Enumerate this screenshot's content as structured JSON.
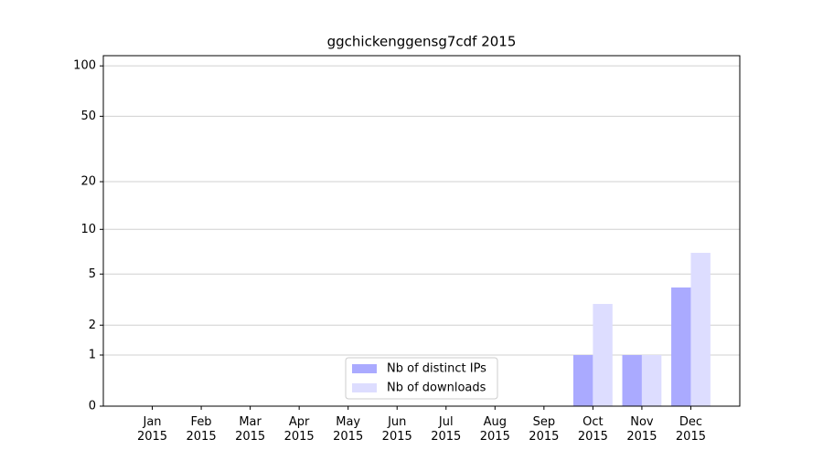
{
  "chart_data": {
    "type": "bar",
    "title": "ggchickenggensg7cdf 2015",
    "scale": "log1p",
    "categories": [
      "Jan 2015",
      "Feb 2015",
      "Mar 2015",
      "Apr 2015",
      "May 2015",
      "Jun 2015",
      "Jul 2015",
      "Aug 2015",
      "Sep 2015",
      "Oct 2015",
      "Nov 2015",
      "Dec 2015"
    ],
    "series": [
      {
        "name": "Nb of distinct IPs",
        "color": "#aaaaff",
        "values": [
          0,
          0,
          0,
          0,
          0,
          0,
          0,
          0,
          0,
          1,
          1,
          4
        ]
      },
      {
        "name": "Nb of downloads",
        "color": "#ddddff",
        "values": [
          0,
          0,
          0,
          0,
          0,
          0,
          0,
          0,
          0,
          3,
          1,
          7
        ]
      }
    ],
    "ylim": [
      0,
      115
    ],
    "yticks": [
      0,
      1,
      2,
      5,
      10,
      20,
      50,
      100
    ],
    "grid": true,
    "legend": "lower center"
  }
}
